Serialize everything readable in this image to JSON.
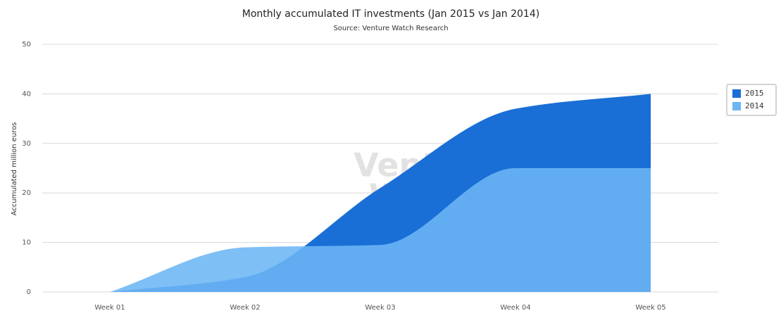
{
  "chart_data": {
    "type": "area",
    "title": "Monthly accumulated IT investments (Jan 2015 vs Jan 2014)",
    "subtitle": "Source: Venture Watch Research",
    "y_label": "Accumulated million euros",
    "watermark": [
      "Venture",
      "Watch"
    ],
    "categories": [
      "Week 01",
      "Week 02",
      "Week 03",
      "Week 04",
      "Week 05"
    ],
    "series": [
      {
        "name": "2015",
        "color": "#1a6fd6",
        "values": [
          0,
          3,
          21,
          37,
          40
        ]
      },
      {
        "name": "2014",
        "color": "#6cb6f5",
        "values": [
          0,
          9,
          9.5,
          25,
          25
        ]
      }
    ],
    "ylim": [
      0,
      50
    ],
    "yticks": [
      0,
      10,
      20,
      30,
      40,
      50
    ],
    "grid": true,
    "legend": "right"
  }
}
